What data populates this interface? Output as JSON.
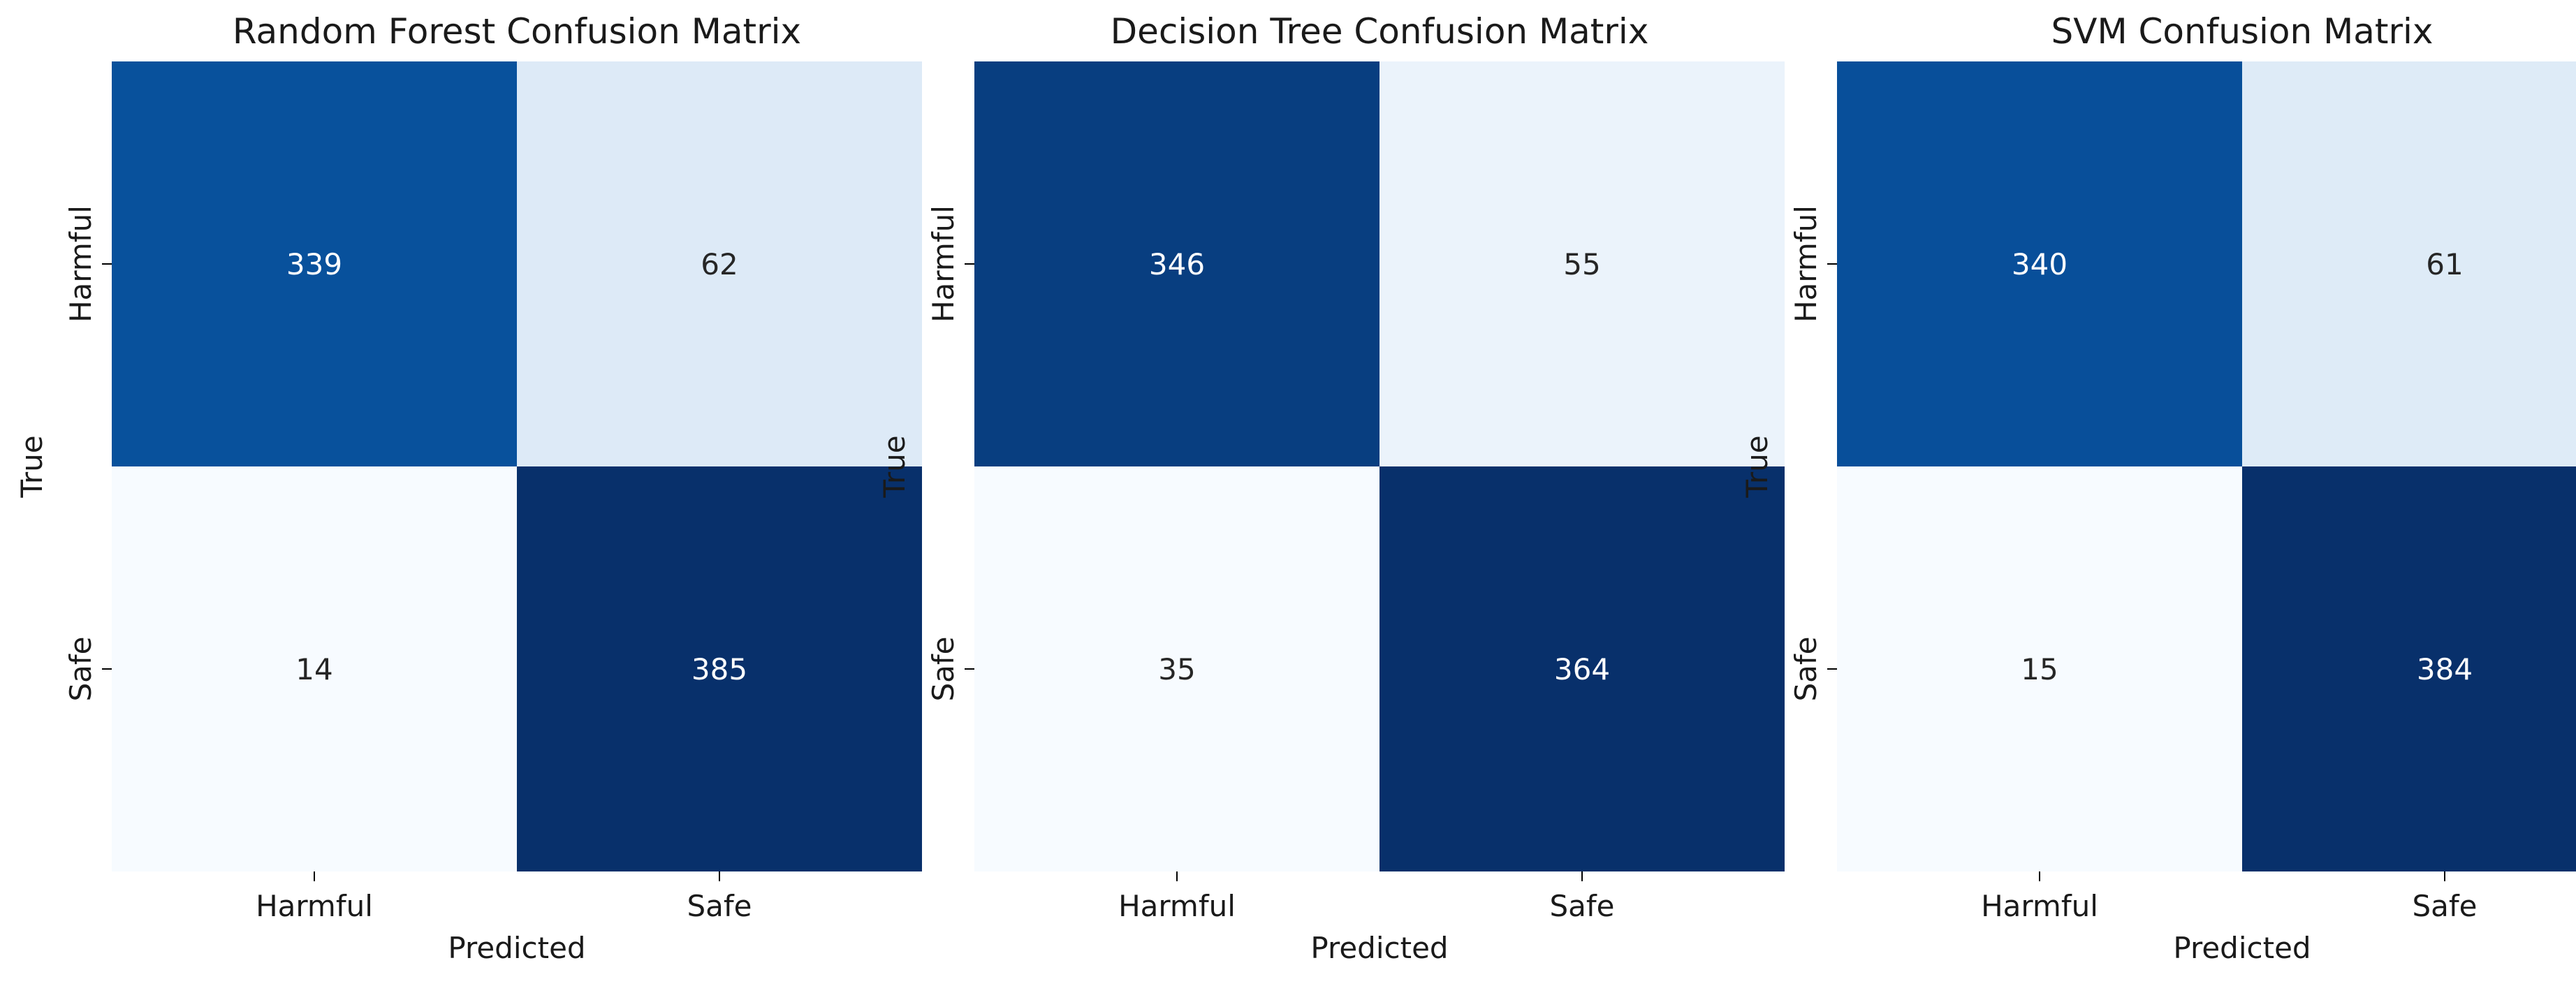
{
  "chart_data": [
    {
      "type": "heatmap",
      "title": "Random Forest Confusion Matrix",
      "xlabel": "Predicted",
      "ylabel": "True",
      "x_categories": [
        "Harmful",
        "Safe"
      ],
      "y_categories": [
        "Harmful",
        "Safe"
      ],
      "values": [
        [
          339,
          62
        ],
        [
          14,
          385
        ]
      ],
      "colormap": "Blues",
      "colorbar": false
    },
    {
      "type": "heatmap",
      "title": "Decision Tree Confusion Matrix",
      "xlabel": "Predicted",
      "ylabel": "True",
      "x_categories": [
        "Harmful",
        "Safe"
      ],
      "y_categories": [
        "Harmful",
        "Safe"
      ],
      "values": [
        [
          346,
          55
        ],
        [
          35,
          364
        ]
      ],
      "colormap": "Blues",
      "colorbar": false
    },
    {
      "type": "heatmap",
      "title": "SVM Confusion Matrix",
      "xlabel": "Predicted",
      "ylabel": "True",
      "x_categories": [
        "Harmful",
        "Safe"
      ],
      "y_categories": [
        "Harmful",
        "Safe"
      ],
      "values": [
        [
          340,
          61
        ],
        [
          15,
          384
        ]
      ],
      "colormap": "Blues",
      "colorbar": false
    }
  ]
}
